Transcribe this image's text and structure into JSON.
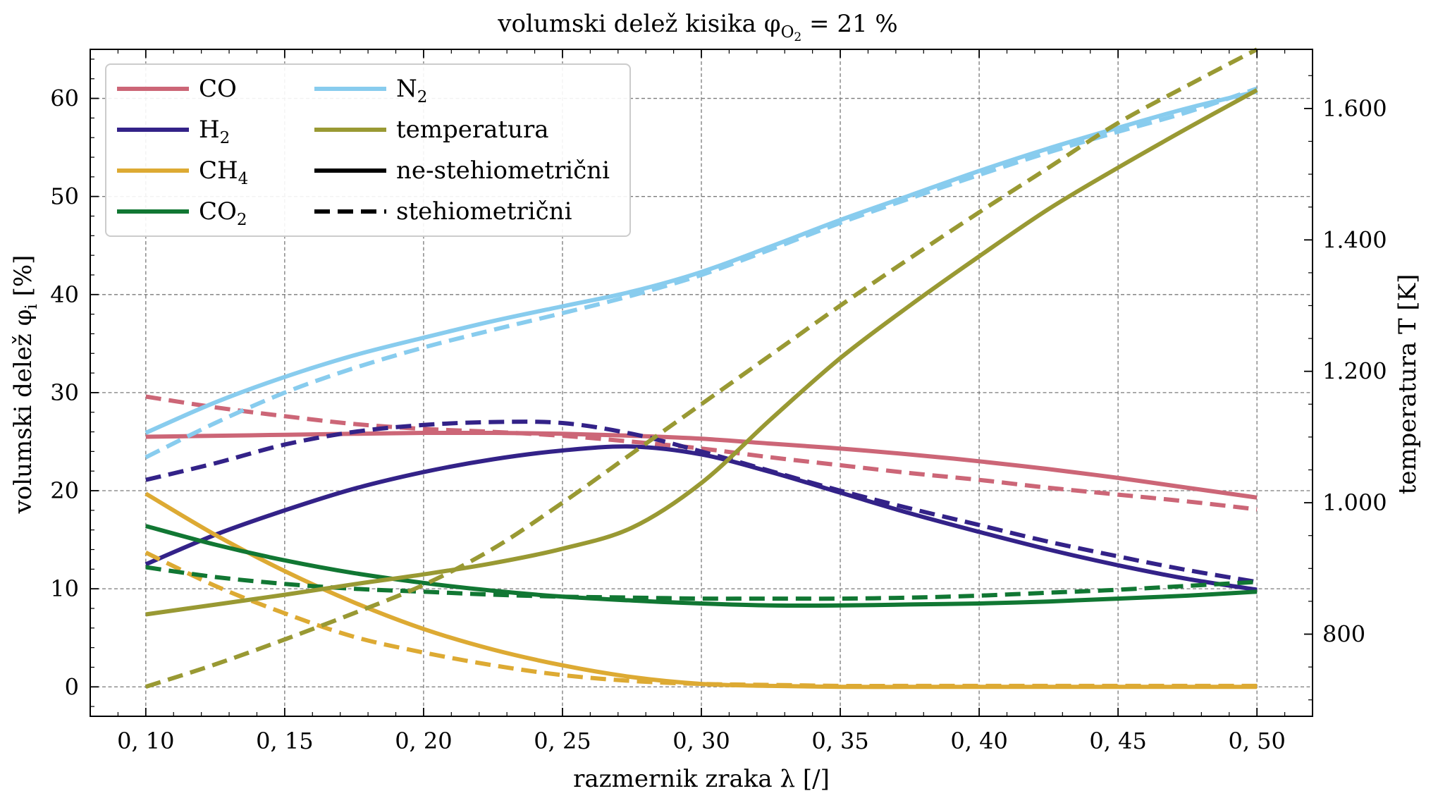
{
  "chart_data": {
    "type": "line",
    "title": "volumski delež kisika φ",
    "title_sub": "O",
    "title_subsub": "2",
    "title_tail": " = 21 %",
    "xlabel": "razmernik zraka λ [/]",
    "ylabel_left": "volumski delež φ",
    "ylabel_left_sub": "i",
    "ylabel_left_tail": " [%]",
    "ylabel_right": "temperatura T [K]",
    "xlim": [
      0.08,
      0.52
    ],
    "ylim_left": [
      -3,
      65
    ],
    "ylim_right": [
      675,
      1690
    ],
    "x_ticks": [
      {
        "value": 0.1,
        "label": "0, 10"
      },
      {
        "value": 0.15,
        "label": "0, 15"
      },
      {
        "value": 0.2,
        "label": "0, 20"
      },
      {
        "value": 0.25,
        "label": "0, 25"
      },
      {
        "value": 0.3,
        "label": "0, 30"
      },
      {
        "value": 0.35,
        "label": "0, 35"
      },
      {
        "value": 0.4,
        "label": "0, 40"
      },
      {
        "value": 0.45,
        "label": "0, 45"
      },
      {
        "value": 0.5,
        "label": "0, 50"
      }
    ],
    "y_ticks_left": [
      {
        "value": 0,
        "label": "0"
      },
      {
        "value": 10,
        "label": "10"
      },
      {
        "value": 20,
        "label": "20"
      },
      {
        "value": 30,
        "label": "30"
      },
      {
        "value": 40,
        "label": "40"
      },
      {
        "value": 50,
        "label": "50"
      },
      {
        "value": 60,
        "label": "60"
      }
    ],
    "y_ticks_right": [
      {
        "value": 800,
        "label": "800"
      },
      {
        "value": 1000,
        "label": "1.000"
      },
      {
        "value": 1200,
        "label": "1.200"
      },
      {
        "value": 1400,
        "label": "1.400"
      },
      {
        "value": 1600,
        "label": "1.600"
      }
    ],
    "grid": true,
    "legend_position": "top-left",
    "legend": [
      {
        "label": "CO",
        "sub": "",
        "color": "#cc6677",
        "style": "solid"
      },
      {
        "label": "H",
        "sub": "2",
        "color": "#332288",
        "style": "solid"
      },
      {
        "label": "CH",
        "sub": "4",
        "color": "#ddaa33",
        "style": "solid"
      },
      {
        "label": "CO",
        "sub": "2",
        "color": "#117733",
        "style": "solid"
      },
      {
        "label": "N",
        "sub": "2",
        "color": "#88ccee",
        "style": "solid"
      },
      {
        "label": "temperatura",
        "sub": "",
        "color": "#999933",
        "style": "solid"
      },
      {
        "label": "ne-stehiometrični",
        "sub": "",
        "color": "#000000",
        "style": "solid"
      },
      {
        "label": "stehiometrični",
        "sub": "",
        "color": "#000000",
        "style": "dashed"
      }
    ],
    "x": [
      0.1,
      0.125,
      0.15,
      0.175,
      0.2,
      0.225,
      0.25,
      0.275,
      0.3,
      0.325,
      0.35,
      0.375,
      0.4,
      0.425,
      0.45,
      0.475,
      0.5
    ],
    "series": [
      {
        "color": "#cc6677",
        "axis": "left",
        "style": "solid",
        "values": [
          25.5,
          25.6,
          25.7,
          25.8,
          25.9,
          25.9,
          25.8,
          25.6,
          25.3,
          24.8,
          24.3,
          23.7,
          23.0,
          22.2,
          21.3,
          20.3,
          19.3
        ]
      },
      {
        "color": "#cc6677",
        "axis": "left",
        "style": "dashed",
        "values": [
          29.6,
          28.5,
          27.6,
          26.8,
          26.3,
          26.0,
          25.6,
          25.0,
          24.3,
          23.4,
          22.6,
          21.8,
          21.1,
          20.3,
          19.6,
          18.9,
          18.1
        ]
      },
      {
        "color": "#332288",
        "axis": "left",
        "style": "solid",
        "values": [
          12.5,
          15.5,
          18.0,
          20.2,
          21.9,
          23.2,
          24.1,
          24.5,
          23.7,
          21.9,
          19.8,
          17.7,
          15.8,
          14.0,
          12.4,
          11.0,
          9.9
        ]
      },
      {
        "color": "#332288",
        "axis": "left",
        "style": "dashed",
        "values": [
          21.1,
          22.8,
          24.7,
          26.0,
          26.7,
          27.0,
          26.9,
          25.8,
          24.0,
          22.0,
          20.0,
          18.2,
          16.5,
          14.8,
          13.3,
          11.9,
          10.7
        ]
      },
      {
        "color": "#ddaa33",
        "axis": "left",
        "style": "solid",
        "values": [
          19.7,
          15.5,
          11.8,
          8.6,
          5.9,
          3.8,
          2.2,
          1.0,
          0.3,
          0.1,
          0.0,
          0.0,
          0.0,
          0.0,
          0.0,
          0.0,
          0.0
        ]
      },
      {
        "color": "#ddaa33",
        "axis": "left",
        "style": "dashed",
        "values": [
          13.7,
          10.3,
          7.5,
          5.1,
          3.5,
          2.2,
          1.2,
          0.6,
          0.3,
          0.2,
          0.1,
          0.1,
          0.1,
          0.1,
          0.1,
          0.1,
          0.1
        ]
      },
      {
        "color": "#117733",
        "axis": "left",
        "style": "solid",
        "values": [
          16.4,
          14.5,
          12.9,
          11.6,
          10.6,
          9.8,
          9.2,
          8.8,
          8.5,
          8.3,
          8.3,
          8.4,
          8.5,
          8.7,
          9.0,
          9.3,
          9.7
        ]
      },
      {
        "color": "#117733",
        "axis": "left",
        "style": "dashed",
        "values": [
          12.2,
          11.2,
          10.5,
          10.0,
          9.7,
          9.4,
          9.2,
          9.1,
          9.0,
          9.0,
          9.0,
          9.1,
          9.3,
          9.6,
          9.9,
          10.3,
          10.7
        ]
      },
      {
        "color": "#88ccee",
        "axis": "left",
        "style": "solid",
        "values": [
          25.9,
          29.0,
          31.6,
          33.8,
          35.6,
          37.3,
          38.8,
          40.3,
          42.3,
          44.9,
          47.6,
          50.1,
          52.6,
          54.9,
          57.0,
          59.0,
          60.7
        ]
      },
      {
        "color": "#88ccee",
        "axis": "left",
        "style": "dashed",
        "values": [
          23.4,
          26.9,
          30.0,
          32.5,
          34.6,
          36.4,
          38.1,
          39.9,
          42.0,
          44.6,
          47.3,
          49.8,
          52.2,
          54.5,
          56.6,
          58.6,
          61.0
        ]
      },
      {
        "color": "#999933",
        "axis": "right",
        "style": "solid",
        "values": [
          830,
          845,
          860,
          876,
          891,
          908,
          930,
          962,
          1030,
          1127,
          1220,
          1300,
          1375,
          1447,
          1510,
          1570,
          1628
        ]
      },
      {
        "color": "#999933",
        "axis": "right",
        "style": "dashed",
        "values": [
          720,
          754,
          792,
          832,
          875,
          930,
          1000,
          1075,
          1150,
          1225,
          1300,
          1372,
          1442,
          1510,
          1578,
          1635,
          1690
        ]
      }
    ]
  }
}
